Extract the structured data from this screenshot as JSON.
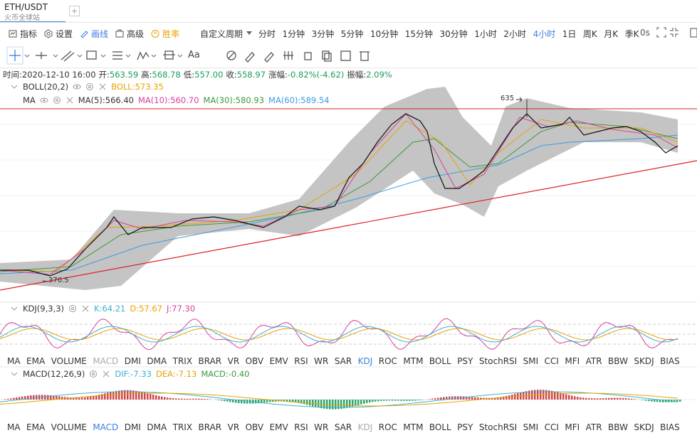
{
  "tab": {
    "symbol": "ETH/USDT",
    "exchange": "火币全球站",
    "add": "+"
  },
  "toolbar": {
    "items": [
      "指标",
      "设置",
      "画线",
      "高级",
      "胜率"
    ],
    "custom_period": "自定义周期",
    "periods": [
      "分时",
      "1分钟",
      "3分钟",
      "5分钟",
      "10分钟",
      "15分钟",
      "30分钟",
      "1小时",
      "2小时",
      "4小时",
      "1日",
      "周K",
      "月K",
      "季K"
    ],
    "active_period": "4小时",
    "countdown": "0s"
  },
  "tools": {
    "font": "Aa"
  },
  "info": [
    {
      "label": "时间:",
      "value": "2020-12-10 16:00"
    },
    {
      "label": "开:",
      "value": "563.59"
    },
    {
      "label": "高:",
      "value": "568.78"
    },
    {
      "label": "低:",
      "value": "557.00"
    },
    {
      "label": "收:",
      "value": "558.97"
    },
    {
      "label": "涨幅:",
      "value": "-0.82%(-4.62)"
    },
    {
      "label": "振幅:",
      "value": "2.09%"
    }
  ],
  "boll": {
    "name": "BOLL(20,2)",
    "values": [
      {
        "text": "BOLL:573.35",
        "color": "#e8a200"
      }
    ]
  },
  "ma": {
    "name": "MA",
    "values": [
      {
        "text": "MA(5):566.40",
        "color": "#333333"
      },
      {
        "text": "MA(10):560.70",
        "color": "#d6409a"
      },
      {
        "text": "MA(30):580.93",
        "color": "#3c9a3c"
      },
      {
        "text": "MA(60):589.54",
        "color": "#3d9be0"
      }
    ]
  },
  "annotations": {
    "high": "635",
    "low": "370.5"
  },
  "kdj": {
    "name": "KDJ(9,3,3)",
    "values": [
      {
        "text": "K:64.21",
        "color": "#3db0d0"
      },
      {
        "text": "D:57.67",
        "color": "#e8a200"
      },
      {
        "text": "J:77.30",
        "color": "#d6409a"
      }
    ]
  },
  "macd": {
    "name": "MACD(12,26,9)",
    "values": [
      {
        "text": "DIF:-7.33",
        "color": "#3db0d0"
      },
      {
        "text": "DEA:-7.13",
        "color": "#e8a200"
      },
      {
        "text": "MACD:-0.40",
        "color": "#3c9a3c"
      }
    ]
  },
  "indicator_tabs": [
    "MA",
    "EMA",
    "VOLUME",
    "MACD",
    "DMI",
    "DMA",
    "TRIX",
    "BRAR",
    "VR",
    "OBV",
    "EMV",
    "RSI",
    "WR",
    "SAR",
    "KDJ",
    "ROC",
    "MTM",
    "BOLL",
    "PSY",
    "StochRSI",
    "SMI",
    "CCI",
    "MFI",
    "ATR",
    "BBW",
    "SKDJ",
    "BIAS"
  ],
  "indicator_tabs_active": [
    "KDJ",
    "MACD"
  ]
}
